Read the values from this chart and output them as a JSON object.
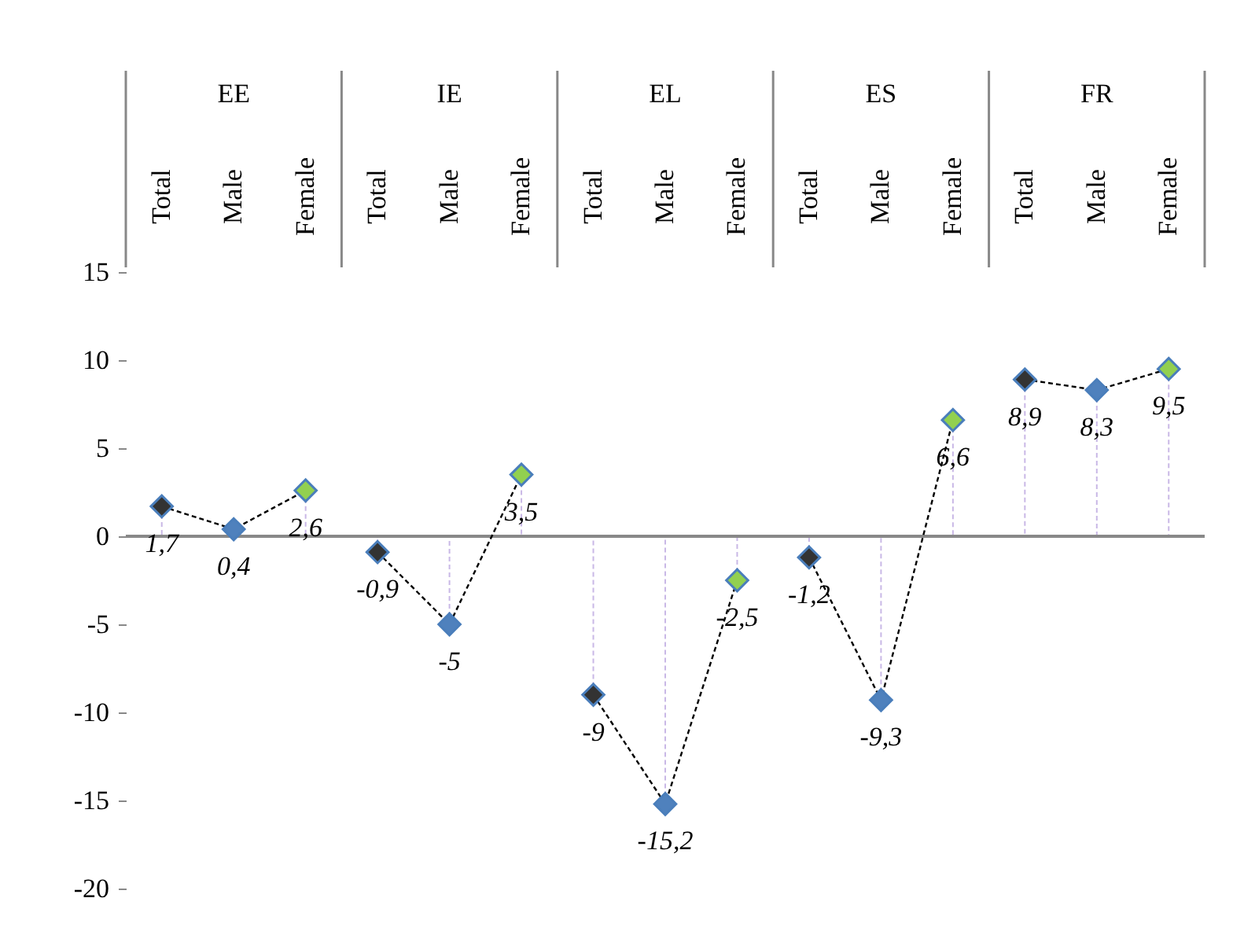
{
  "chart_data": {
    "type": "line",
    "categories": [
      "Total",
      "Male",
      "Female",
      "Total",
      "Male",
      "Female",
      "Total",
      "Male",
      "Female",
      "Total",
      "Male",
      "Female",
      "Total",
      "Male",
      "Female"
    ],
    "annotations": [
      "EE",
      "IE",
      "EL",
      "ES",
      "FR"
    ],
    "series": [
      {
        "color": "#000000",
        "values": [
          1.7,
          0.4,
          2.6,
          null,
          null,
          null,
          null,
          null,
          null,
          null,
          null,
          null,
          null,
          null,
          null
        ],
        "colors": [
          "#333333",
          "#4f81bd",
          "#92d050",
          null,
          null,
          null,
          null,
          null,
          null,
          null,
          null,
          null,
          null,
          null,
          null
        ],
        "value_labels": [
          "1,7",
          "0,4",
          "2,6",
          null,
          null,
          null,
          null,
          null,
          null,
          null,
          null,
          null,
          null,
          null,
          null
        ]
      },
      {
        "color": "#000000",
        "values": [
          null,
          null,
          null,
          -0.9,
          -5,
          3.5,
          null,
          null,
          null,
          null,
          null,
          null,
          null,
          null,
          null
        ],
        "colors": [
          null,
          null,
          null,
          "#333333",
          "#4f81bd",
          "#92d050",
          null,
          null,
          null,
          null,
          null,
          null,
          null,
          null,
          null
        ],
        "value_labels": [
          null,
          null,
          null,
          "-0,9",
          "-5",
          "3,5",
          null,
          null,
          null,
          null,
          null,
          null,
          null,
          null,
          null
        ]
      },
      {
        "color": "#000000",
        "values": [
          null,
          null,
          null,
          null,
          null,
          null,
          -9,
          -15.2,
          -2.5,
          null,
          null,
          null,
          null,
          null,
          null
        ],
        "colors": [
          null,
          null,
          null,
          null,
          null,
          null,
          "#333333",
          "#4f81bd",
          "#92d050",
          null,
          null,
          null,
          null,
          null,
          null
        ],
        "value_labels": [
          null,
          null,
          null,
          null,
          null,
          null,
          "-9",
          "-15,2",
          "-2,5",
          null,
          null,
          null,
          null,
          null,
          null
        ]
      },
      {
        "color": "#000000",
        "values": [
          null,
          null,
          null,
          null,
          null,
          null,
          null,
          null,
          null,
          -1.2,
          -9.3,
          6.6,
          null,
          null,
          null
        ],
        "colors": [
          null,
          null,
          null,
          null,
          null,
          null,
          null,
          null,
          null,
          "#333333",
          "#4f81bd",
          "#92d050",
          null,
          null,
          null
        ],
        "value_labels": [
          null,
          null,
          null,
          null,
          null,
          null,
          null,
          null,
          null,
          "-1,2",
          "-9,3",
          "6,6",
          null,
          null,
          null
        ]
      },
      {
        "color": "#000000",
        "values": [
          null,
          null,
          null,
          null,
          null,
          null,
          null,
          null,
          null,
          null,
          null,
          null,
          8.9,
          8.3,
          9.5
        ],
        "colors": [
          null,
          null,
          null,
          null,
          null,
          null,
          null,
          null,
          null,
          null,
          null,
          null,
          "#333333",
          "#4f81bd",
          "#92d050"
        ],
        "value_labels": [
          null,
          null,
          null,
          null,
          null,
          null,
          null,
          null,
          null,
          null,
          null,
          null,
          "8,9",
          "8,3",
          "9,5"
        ]
      }
    ],
    "ylim": [
      -20,
      15
    ],
    "yticks": [
      -20,
      -15,
      -10,
      -5,
      0,
      5,
      10,
      15
    ],
    "ref_lines": [
      {
        "axis": "y",
        "value": 0,
        "color": "#888888",
        "line_style": "solid"
      }
    ],
    "grid": false,
    "marker": "diamond",
    "line_style": "dashed"
  }
}
